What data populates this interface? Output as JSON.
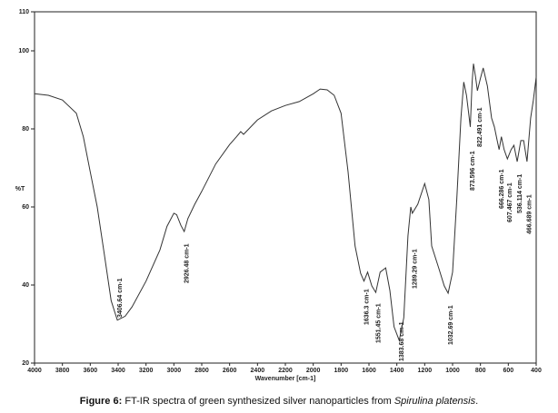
{
  "chart_data": {
    "type": "line",
    "color": "#333333",
    "x_label": "Wavenumber [cm-1]",
    "y_label": "%T",
    "xlim": [
      4000,
      400
    ],
    "xticks": [
      4000,
      3800,
      3600,
      3400,
      3200,
      3000,
      2800,
      2600,
      2400,
      2200,
      2000,
      1800,
      1600,
      1400,
      1200,
      1000,
      800,
      600,
      400
    ],
    "ylim": [
      20,
      110
    ],
    "yticks": [
      20,
      40,
      60,
      80,
      100,
      110
    ],
    "x": [
      4000,
      3900,
      3800,
      3700,
      3650,
      3600,
      3550,
      3500,
      3450,
      3406,
      3350,
      3300,
      3200,
      3100,
      3050,
      3000,
      2980,
      2950,
      2926,
      2900,
      2850,
      2800,
      2700,
      2600,
      2550,
      2520,
      2500,
      2400,
      2300,
      2200,
      2100,
      2000,
      1950,
      1900,
      1850,
      1800,
      1750,
      1700,
      1660,
      1636,
      1610,
      1580,
      1551,
      1520,
      1480,
      1450,
      1420,
      1383,
      1350,
      1320,
      1300,
      1289,
      1250,
      1200,
      1170,
      1150,
      1100,
      1060,
      1032,
      1000,
      970,
      940,
      920,
      900,
      873,
      860,
      850,
      835,
      822,
      800,
      780,
      750,
      720,
      700,
      680,
      666,
      650,
      630,
      607,
      580,
      560,
      536,
      510,
      490,
      466,
      440,
      420,
      400
    ],
    "values": [
      89,
      88.6,
      87.4,
      84,
      78,
      69,
      60,
      48,
      36,
      31,
      32,
      34.4,
      41,
      49,
      55,
      58.4,
      58,
      55.3,
      53.7,
      57,
      60.7,
      64,
      71,
      76,
      78,
      79.3,
      78.6,
      82.3,
      84.6,
      86,
      87,
      89,
      90.2,
      90,
      88.6,
      84,
      69,
      50,
      43,
      41,
      43.3,
      39.8,
      38.1,
      43.3,
      44.4,
      38.6,
      29.3,
      25.8,
      31.6,
      52.6,
      60,
      58.4,
      60.7,
      66,
      61.9,
      50,
      44.4,
      39.8,
      37.9,
      43.3,
      61.9,
      82.8,
      92,
      88.6,
      80.5,
      92,
      96.7,
      93.3,
      89.8,
      93,
      95.6,
      91,
      82.8,
      80.5,
      77,
      74.7,
      78,
      74.7,
      72.3,
      74.7,
      75.8,
      71.6,
      77,
      77,
      71.6,
      82.8,
      87.4,
      93.3
    ],
    "annotations": [
      {
        "text": "3406.64 cm-1",
        "x": 3406.64
      },
      {
        "text": "2926.48 cm-1",
        "x": 2926.48
      },
      {
        "text": "1636.3 cm-1",
        "x": 1636.3
      },
      {
        "text": "1551.45 cm-1",
        "x": 1551.45
      },
      {
        "text": "1383.68 cm-1",
        "x": 1383.68
      },
      {
        "text": "1289.29 cm-1",
        "x": 1289.29
      },
      {
        "text": "1032.69 cm-1",
        "x": 1032.69
      },
      {
        "text": "873.596 cm-1",
        "x": 873.596
      },
      {
        "text": "822.491 cm-1",
        "x": 822.491
      },
      {
        "text": "666.286 cm-1",
        "x": 666.286
      },
      {
        "text": "607.467 cm-1",
        "x": 607.467
      },
      {
        "text": "536.114 cm-1",
        "x": 536.114
      },
      {
        "text": "466.689 cm-1",
        "x": 466.689
      }
    ],
    "caption": {
      "label": "Figure 6:",
      "text": "FT-IR spectra of green synthesized silver nanoparticles from",
      "species": "Spirulina platensis",
      "end": "."
    }
  }
}
